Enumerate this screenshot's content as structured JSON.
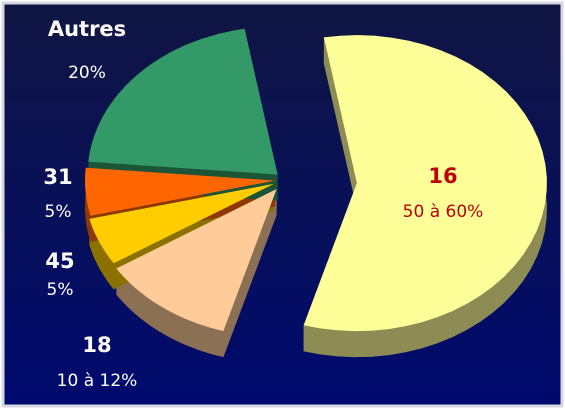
{
  "chart_data": {
    "type": "pie",
    "categories": [
      "16",
      "18",
      "45",
      "31",
      "Autres"
    ],
    "values": [
      55,
      11,
      5,
      5,
      20
    ],
    "value_labels": [
      "50 à 60%",
      "10 à 12%",
      "5%",
      "5%",
      "20%"
    ],
    "colors": [
      "#ffff99",
      "#ffcc99",
      "#ffcc00",
      "#ff6600",
      "#339966"
    ]
  }
}
